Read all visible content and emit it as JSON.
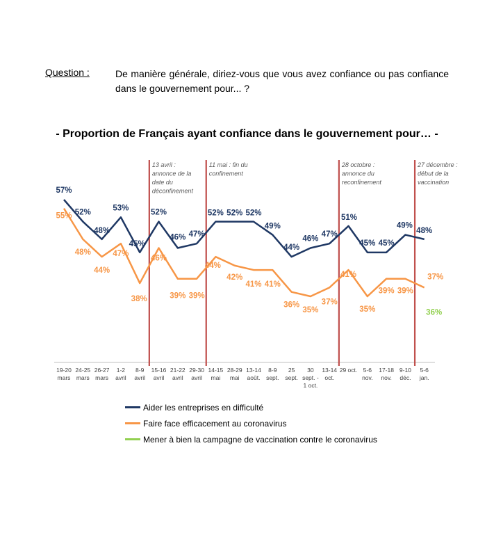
{
  "question": {
    "label": "Question",
    "colon": " :",
    "text": "De manière générale, diriez-vous que vous avez confiance ou pas confiance dans le gouvernement pour... ?"
  },
  "chart_data": {
    "type": "line",
    "title": "- Proportion de Français ayant confiance dans le gouvernement pour… -",
    "xlabel": "",
    "ylabel": "",
    "grid": false,
    "legend_position": "bottom",
    "categories": [
      [
        "19-20",
        "mars"
      ],
      [
        "24-25",
        "mars"
      ],
      [
        "26-27",
        "mars"
      ],
      [
        "1-2",
        "avril"
      ],
      [
        "8-9",
        "avril"
      ],
      [
        "15-16",
        "avril"
      ],
      [
        "21-22",
        "avril"
      ],
      [
        "29-30",
        "avril"
      ],
      [
        "14-15",
        "mai"
      ],
      [
        "28-29",
        "mai"
      ],
      [
        "13-14",
        "août."
      ],
      [
        "8-9",
        "sept."
      ],
      [
        "25",
        "sept."
      ],
      [
        "30",
        "sept. -",
        "1 oct."
      ],
      [
        "13-14",
        "oct."
      ],
      [
        "29 oct."
      ],
      [
        "5-6",
        "nov."
      ],
      [
        "17-18",
        "nov."
      ],
      [
        "9-10",
        "déc."
      ],
      [
        "5-6",
        "jan."
      ]
    ],
    "series": [
      {
        "name": "Aider les entreprises en difficulté",
        "color": "#1f3864",
        "values": [
          57,
          52,
          48,
          53,
          45,
          52,
          46,
          47,
          52,
          52,
          52,
          49,
          44,
          46,
          47,
          51,
          45,
          45,
          49,
          48
        ]
      },
      {
        "name": "Faire face efficacement au coronavirus",
        "color": "#f79646",
        "values": [
          55,
          48,
          44,
          47,
          38,
          46,
          39,
          39,
          44,
          42,
          41,
          41,
          36,
          35,
          37,
          41,
          35,
          39,
          39,
          37
        ]
      },
      {
        "name": "Mener à bien la campagne de vaccination contre le coronavirus",
        "color": "#92d050",
        "values": [
          null,
          null,
          null,
          null,
          null,
          null,
          null,
          null,
          null,
          null,
          null,
          null,
          null,
          null,
          null,
          null,
          null,
          null,
          null,
          36
        ]
      }
    ],
    "annotations": [
      {
        "between": [
          4,
          5
        ],
        "lines": [
          "13 avril :",
          "annonce de la",
          "date du",
          "déconfinement"
        ]
      },
      {
        "between": [
          7,
          8
        ],
        "lines": [
          "11 mai : fin du",
          "confinement"
        ]
      },
      {
        "between": [
          14,
          15
        ],
        "lines": [
          "28 octobre :",
          "annonce du",
          "reconfinement"
        ]
      },
      {
        "between": [
          18,
          19
        ],
        "lines": [
          "27 décembre :",
          "début de la",
          "vaccination"
        ]
      }
    ]
  }
}
